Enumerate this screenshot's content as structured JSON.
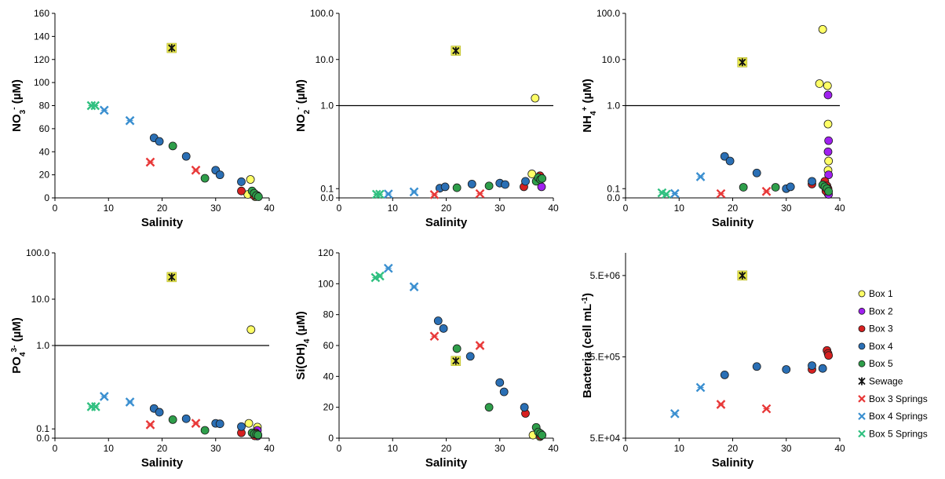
{
  "colors": {
    "box1": "#ffff66",
    "box2": "#a020f0",
    "box3": "#d62020",
    "box4": "#2a6fb5",
    "box5": "#2e9e4a",
    "sewage_fill": "#e8e84a",
    "box3_springs": "#e83838",
    "box4_springs": "#3a8fd0",
    "box5_springs": "#30c080"
  },
  "legend": {
    "placement": "right",
    "items": [
      {
        "key": "box1",
        "label": "Box 1",
        "marker": "circle"
      },
      {
        "key": "box2",
        "label": "Box 2",
        "marker": "circle"
      },
      {
        "key": "box3",
        "label": "Box 3",
        "marker": "circle"
      },
      {
        "key": "box4",
        "label": "Box 4",
        "marker": "circle"
      },
      {
        "key": "box5",
        "label": "Box 5",
        "marker": "circle"
      },
      {
        "key": "sewage",
        "label": "Sewage",
        "marker": "sewage"
      },
      {
        "key": "box3_springs",
        "label": "Box 3 Springs",
        "marker": "x"
      },
      {
        "key": "box4_springs",
        "label": "Box 4 Springs",
        "marker": "x"
      },
      {
        "key": "box5_springs",
        "label": "Box 5 Springs",
        "marker": "x"
      }
    ]
  },
  "chart_data": [
    {
      "type": "scatter",
      "xlabel": "Salinity",
      "ylabel": "NO3- (µM)",
      "xlim": [
        0,
        40
      ],
      "ylim": [
        0,
        160
      ],
      "yscale": "linear",
      "xticks": [
        "0",
        "10",
        "20",
        "30",
        "40"
      ],
      "yticks": [
        "0",
        "20",
        "40",
        "60",
        "80",
        "100",
        "120",
        "140",
        "160"
      ],
      "series": [
        {
          "key": "box1",
          "x": [
            36.5,
            36.0,
            37.8,
            37.4
          ],
          "y": [
            16,
            3,
            2,
            1
          ]
        },
        {
          "key": "box3",
          "x": [
            34.8,
            37.2,
            37.8
          ],
          "y": [
            6,
            2,
            1.5
          ]
        },
        {
          "key": "box4",
          "x": [
            18.5,
            19.5,
            24.5,
            30,
            30.8,
            34.8
          ],
          "y": [
            52,
            49,
            36,
            24,
            20,
            14
          ]
        },
        {
          "key": "box5",
          "x": [
            22,
            28,
            36.8,
            37.2,
            37.6,
            38
          ],
          "y": [
            45,
            17,
            6,
            4,
            2,
            1
          ]
        },
        {
          "key": "sewage",
          "x": [
            21.8
          ],
          "y": [
            130
          ]
        },
        {
          "key": "box3_springs",
          "x": [
            17.8,
            26.3
          ],
          "y": [
            31,
            24
          ]
        },
        {
          "key": "box4_springs",
          "x": [
            9.2,
            14
          ],
          "y": [
            76,
            67
          ]
        },
        {
          "key": "box5_springs",
          "x": [
            6.8,
            7.5
          ],
          "y": [
            80,
            80
          ]
        }
      ]
    },
    {
      "type": "scatter",
      "xlabel": "Salinity",
      "ylabel": "NO2- (µM)",
      "xlim": [
        0,
        40
      ],
      "ylim": [
        0,
        100
      ],
      "yscale": "split-log",
      "xticks": [
        "0",
        "10",
        "20",
        "30",
        "40"
      ],
      "yticks": [
        "0.0",
        "0.1",
        "1.0",
        "10.0",
        "100.0"
      ],
      "series": [
        {
          "key": "box1",
          "x": [
            36.6,
            36.0
          ],
          "y": [
            1.45,
            0.26
          ]
        },
        {
          "key": "box2",
          "x": [
            37.8
          ],
          "y": [
            0.12
          ]
        },
        {
          "key": "box3",
          "x": [
            34.5,
            37.5
          ],
          "y": [
            0.12,
            0.24
          ]
        },
        {
          "key": "box4",
          "x": [
            18.8,
            19.8,
            24.8,
            30,
            31,
            34.8
          ],
          "y": [
            0.105,
            0.12,
            0.15,
            0.16,
            0.145,
            0.18
          ]
        },
        {
          "key": "box5",
          "x": [
            22,
            28,
            36.8,
            37.2,
            37.6,
            37.9
          ],
          "y": [
            0.11,
            0.13,
            0.18,
            0.22,
            0.2,
            0.21
          ]
        },
        {
          "key": "sewage",
          "x": [
            21.8
          ],
          "y": [
            15.5
          ]
        },
        {
          "key": "box3_springs",
          "x": [
            17.8,
            26.3
          ],
          "y": [
            0.035,
            0.045
          ]
        },
        {
          "key": "box4_springs",
          "x": [
            9.2,
            14
          ],
          "y": [
            0.042,
            0.065
          ]
        },
        {
          "key": "box5_springs",
          "x": [
            7,
            7.6
          ],
          "y": [
            0.039,
            0.04
          ]
        }
      ]
    },
    {
      "type": "scatter",
      "xlabel": "Salinity",
      "ylabel": "NH4+ (µM)",
      "xlim": [
        0,
        40
      ],
      "ylim": [
        0,
        100
      ],
      "yscale": "split-log",
      "xticks": [
        "0",
        "10",
        "20",
        "30",
        "40"
      ],
      "yticks": [
        "0.0",
        "0.1",
        "1.0",
        "10.0",
        "100.0"
      ],
      "series": [
        {
          "key": "box1",
          "x": [
            36.8,
            36.2,
            37.7,
            37.8,
            37.9,
            37.8
          ],
          "y": [
            45,
            3,
            2.7,
            0.8,
            0.4,
            0.3
          ]
        },
        {
          "key": "box2",
          "x": [
            37.8,
            37.9,
            37.8,
            37.9,
            37.8,
            37.9
          ],
          "y": [
            1.7,
            0.62,
            0.5,
            0.25,
            0.045,
            0.038
          ]
        },
        {
          "key": "box3",
          "x": [
            34.8,
            37.2,
            37.6,
            37.8,
            37.4
          ],
          "y": [
            0.15,
            0.18,
            0.13,
            0.1,
            0.075
          ]
        },
        {
          "key": "box4",
          "x": [
            18.5,
            19.5,
            24.5,
            30,
            30.8,
            34.8
          ],
          "y": [
            0.45,
            0.4,
            0.27,
            0.1,
            0.12,
            0.18
          ]
        },
        {
          "key": "box5",
          "x": [
            22,
            28,
            36.8,
            37.2,
            37.6,
            37.9
          ],
          "y": [
            0.115,
            0.115,
            0.14,
            0.12,
            0.1,
            0.07
          ]
        },
        {
          "key": "sewage",
          "x": [
            21.8
          ],
          "y": [
            8.7
          ]
        },
        {
          "key": "box3_springs",
          "x": [
            17.8,
            26.3
          ],
          "y": [
            0.045,
            0.07
          ]
        },
        {
          "key": "box4_springs",
          "x": [
            9.2,
            14
          ],
          "y": [
            0.047,
            0.23
          ]
        },
        {
          "key": "box5_springs",
          "x": [
            6.8,
            7.6
          ],
          "y": [
            0.055,
            0.04
          ]
        }
      ]
    },
    {
      "type": "scatter",
      "xlabel": "Salinity",
      "ylabel": "PO43- (µM)",
      "xlim": [
        0,
        40
      ],
      "ylim": [
        0,
        100
      ],
      "yscale": "split-log",
      "xticks": [
        "0",
        "10",
        "20",
        "30",
        "40"
      ],
      "yticks": [
        "0.0",
        "0.1",
        "1.0",
        "10.0",
        "100.0"
      ],
      "series": [
        {
          "key": "box1",
          "x": [
            36.6,
            36.2,
            37.8
          ],
          "y": [
            2.2,
            0.16,
            0.12
          ]
        },
        {
          "key": "box2",
          "x": [
            37.8,
            37.9,
            37.8
          ],
          "y": [
            0.085,
            0.03,
            0.023
          ]
        },
        {
          "key": "box3",
          "x": [
            34.8,
            37.5,
            37.7,
            37.3
          ],
          "y": [
            0.058,
            0.058,
            0.045,
            0.025
          ]
        },
        {
          "key": "box4",
          "x": [
            18.5,
            19.5,
            24.5,
            30,
            30.8,
            34.8
          ],
          "y": [
            0.32,
            0.28,
            0.21,
            0.16,
            0.155,
            0.125
          ]
        },
        {
          "key": "box5",
          "x": [
            22,
            28,
            36.8,
            37.2,
            37.6,
            37.9
          ],
          "y": [
            0.2,
            0.085,
            0.058,
            0.045,
            0.04,
            0.035
          ]
        },
        {
          "key": "sewage",
          "x": [
            21.8
          ],
          "y": [
            30
          ]
        },
        {
          "key": "box3_springs",
          "x": [
            17.8,
            26.3
          ],
          "y": [
            0.145,
            0.16
          ]
        },
        {
          "key": "box4_springs",
          "x": [
            9.2,
            14
          ],
          "y": [
            0.45,
            0.39
          ]
        },
        {
          "key": "box5_springs",
          "x": [
            6.8,
            7.6
          ],
          "y": [
            0.34,
            0.34
          ]
        }
      ]
    },
    {
      "type": "scatter",
      "xlabel": "Salinity",
      "ylabel": "Si(OH)4 (µM)",
      "xlim": [
        0,
        40
      ],
      "ylim": [
        0,
        120
      ],
      "yscale": "linear",
      "xticks": [
        "0",
        "10",
        "20",
        "30",
        "40"
      ],
      "yticks": [
        "0",
        "20",
        "40",
        "60",
        "80",
        "100",
        "120"
      ],
      "series": [
        {
          "key": "box1",
          "x": [
            36.2,
            37.5
          ],
          "y": [
            2,
            1
          ]
        },
        {
          "key": "box3",
          "x": [
            34.8,
            37.6
          ],
          "y": [
            16,
            1.5
          ]
        },
        {
          "key": "box4",
          "x": [
            18.5,
            19.5,
            24.5,
            30,
            30.8,
            34.6
          ],
          "y": [
            76,
            71,
            53,
            36,
            30,
            20
          ]
        },
        {
          "key": "box5",
          "x": [
            22,
            28,
            36.8,
            37.2,
            37.6,
            37.9
          ],
          "y": [
            58,
            20,
            7,
            4,
            3,
            2
          ]
        },
        {
          "key": "sewage",
          "x": [
            21.8
          ],
          "y": [
            50
          ]
        },
        {
          "key": "box3_springs",
          "x": [
            17.8,
            26.3
          ],
          "y": [
            66,
            60
          ]
        },
        {
          "key": "box4_springs",
          "x": [
            9.2,
            14
          ],
          "y": [
            110,
            98
          ]
        },
        {
          "key": "box5_springs",
          "x": [
            6.8,
            7.6
          ],
          "y": [
            104,
            105
          ]
        }
      ]
    },
    {
      "type": "scatter",
      "xlabel": "Salinity",
      "ylabel": "Bacteria (cell mL-1)",
      "xlim": [
        0,
        40
      ],
      "ylim": [
        50000,
        9500000
      ],
      "yscale": "log",
      "xticks": [
        "0",
        "10",
        "20",
        "30",
        "40"
      ],
      "yticks": [
        "5.E+04",
        "5.E+05",
        "5.E+06"
      ],
      "series": [
        {
          "key": "box3",
          "x": [
            34.8,
            37.6,
            37.8,
            37.9
          ],
          "y": [
            350000,
            600000,
            550000,
            520000
          ]
        },
        {
          "key": "box4",
          "x": [
            18.5,
            24.5,
            30,
            34.8,
            36.8
          ],
          "y": [
            300000,
            380000,
            350000,
            390000,
            360000
          ]
        },
        {
          "key": "sewage",
          "x": [
            21.8
          ],
          "y": [
            5000000
          ]
        },
        {
          "key": "box3_springs",
          "x": [
            17.8,
            26.3
          ],
          "y": [
            130000,
            115000
          ]
        },
        {
          "key": "box4_springs",
          "x": [
            9.2,
            14
          ],
          "y": [
            100000,
            210000
          ]
        }
      ]
    }
  ]
}
